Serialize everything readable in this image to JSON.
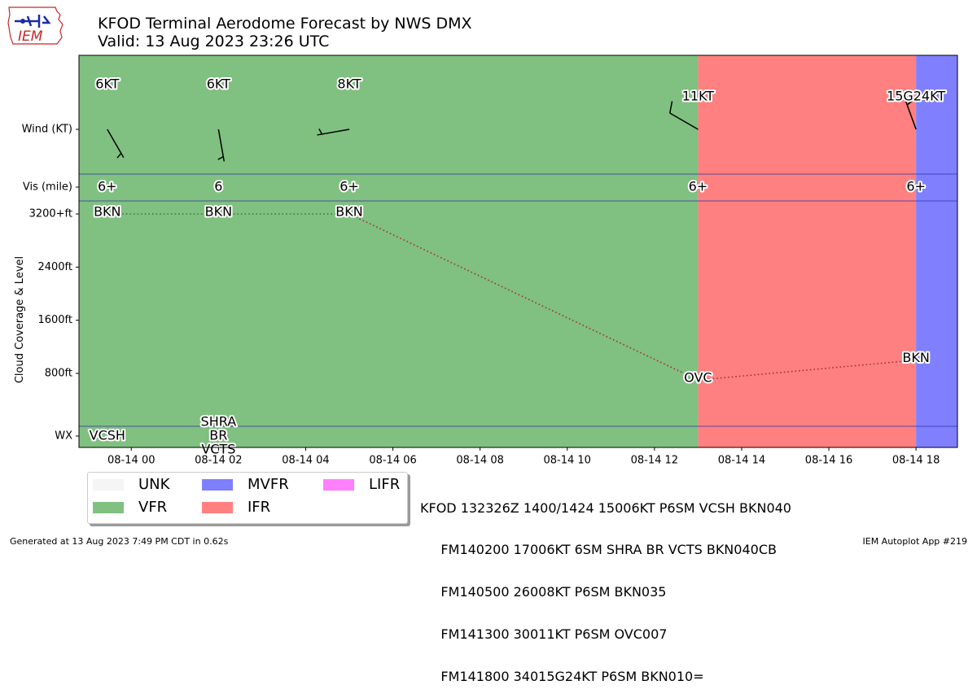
{
  "page": {
    "title_line1": "KFOD Terminal Aerodome Forecast by NWS DMX",
    "title_line2": "Valid: 13 Aug 2023 23:26 UTC",
    "logo_text": "IEM",
    "footer_left": "Generated at 13 Aug 2023 7:49 PM CDT in 0.62s",
    "footer_right": "IEM Autoplot App #219",
    "taf_text": [
      "KFOD 132326Z 1400/1424 15006KT P6SM VCSH BKN040",
      "     FM140200 17006KT 6SM SHRA BR VCTS BKN040CB",
      "     FM140500 26008KT P6SM BKN035",
      "     FM141300 30011KT P6SM OVC007",
      "     FM141800 34015G24KT P6SM BKN010="
    ]
  },
  "legend": [
    {
      "label": "UNK",
      "color": "#f5f5f5"
    },
    {
      "label": "MVFR",
      "color": "#8080ff"
    },
    {
      "label": "LIFR",
      "color": "#ff80ff"
    },
    {
      "label": "VFR",
      "color": "#80c080"
    },
    {
      "label": "IFR",
      "color": "#ff8080"
    }
  ],
  "chart_data": {
    "type": "line",
    "ylabel": "Cloud Coverage & Level",
    "row_labels": {
      "wind": "Wind (KT)",
      "vis": "Vis (mile)",
      "wx": "WX"
    },
    "y_ticks": [
      {
        "value": 3200,
        "label": "3200+ft"
      },
      {
        "value": 2400,
        "label": "2400ft"
      },
      {
        "value": 1600,
        "label": "1600ft"
      },
      {
        "value": 800,
        "label": "800ft"
      }
    ],
    "ylim_ft": [
      0,
      3200
    ],
    "x_start_hour": 22.8,
    "x_end_hour": 42.95,
    "x_ticks": [
      {
        "hour": 24,
        "label": "08-14 00"
      },
      {
        "hour": 26,
        "label": "08-14 02"
      },
      {
        "hour": 28,
        "label": "08-14 04"
      },
      {
        "hour": 30,
        "label": "08-14 06"
      },
      {
        "hour": 32,
        "label": "08-14 08"
      },
      {
        "hour": 34,
        "label": "08-14 10"
      },
      {
        "hour": 36,
        "label": "08-14 12"
      },
      {
        "hour": 38,
        "label": "08-14 14"
      },
      {
        "hour": 40,
        "label": "08-14 16"
      },
      {
        "hour": 42,
        "label": "08-14 18"
      }
    ],
    "categories": [
      {
        "from": 22.8,
        "to": 37,
        "color": "#80c080"
      },
      {
        "from": 37,
        "to": 42,
        "color": "#ff8080"
      },
      {
        "from": 42,
        "to": 42.95,
        "color": "#8080ff"
      }
    ],
    "forecasts": [
      {
        "hour": 23.45,
        "wind_dir": 150,
        "wind_kt": 6,
        "wind_label": "6KT",
        "vis": "6+",
        "cloud": "BKN",
        "level_ft": 3200,
        "wx": [
          "VCSH"
        ]
      },
      {
        "hour": 26,
        "wind_dir": 170,
        "wind_kt": 6,
        "wind_label": "6KT",
        "vis": "6",
        "cloud": "BKN",
        "level_ft": 3200,
        "wx": [
          "SHRA",
          "BR",
          "VCTS"
        ]
      },
      {
        "hour": 29,
        "wind_dir": 260,
        "wind_kt": 8,
        "wind_label": "8KT",
        "vis": "6+",
        "cloud": "BKN",
        "level_ft": 3200,
        "wx": []
      },
      {
        "hour": 37,
        "wind_dir": 300,
        "wind_kt": 11,
        "wind_label": "11KT",
        "vis": "6+",
        "cloud": "OVC",
        "level_ft": 700,
        "wx": []
      },
      {
        "hour": 42,
        "wind_dir": 340,
        "wind_kt": 15,
        "wind_label": "15G24KT",
        "vis": "6+",
        "cloud": "BKN",
        "level_ft": 1000,
        "wx": []
      }
    ],
    "line_colors": [
      "#2e7d32",
      "#2e7d32",
      "#a0303a",
      "#a0303a"
    ]
  }
}
